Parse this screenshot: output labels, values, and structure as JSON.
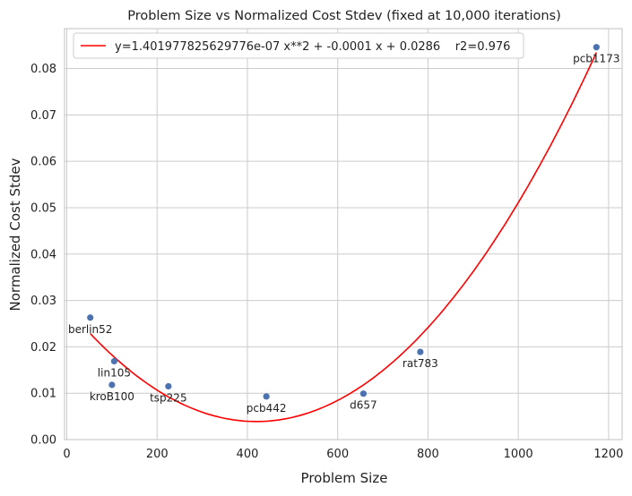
{
  "chart_data": {
    "type": "scatter",
    "title": "Problem Size vs Normalized Cost Stdev (fixed at 10,000 iterations)",
    "xlabel": "Problem Size",
    "ylabel": "Normalized Cost Stdev",
    "xlim": [
      -5,
      1230
    ],
    "ylim": [
      0,
      0.0886
    ],
    "xticks": [
      0,
      200,
      400,
      600,
      800,
      1000,
      1200
    ],
    "yticks": [
      0.0,
      0.01,
      0.02,
      0.03,
      0.04,
      0.05,
      0.06,
      0.07,
      0.08
    ],
    "xtick_labels": [
      "0",
      "200",
      "400",
      "600",
      "800",
      "1000",
      "1200"
    ],
    "ytick_labels": [
      "0.00",
      "0.01",
      "0.02",
      "0.03",
      "0.04",
      "0.05",
      "0.06",
      "0.07",
      "0.08"
    ],
    "grid": true,
    "legend_position": "top-left",
    "points": [
      {
        "label": "berlin52",
        "x": 52,
        "y": 0.0263
      },
      {
        "label": "kroB100",
        "x": 100,
        "y": 0.0118
      },
      {
        "label": "lin105",
        "x": 105,
        "y": 0.0169
      },
      {
        "label": "tsp225",
        "x": 225,
        "y": 0.0115
      },
      {
        "label": "pcb442",
        "x": 442,
        "y": 0.0093
      },
      {
        "label": "d657",
        "x": 657,
        "y": 0.0099
      },
      {
        "label": "rat783",
        "x": 783,
        "y": 0.0189
      },
      {
        "label": "pcb1173",
        "x": 1173,
        "y": 0.0846
      }
    ],
    "fit": {
      "legend_label": "y=1.401977825629776e-07 x**2 + -0.0001 x + 0.0286    r2=0.976",
      "a": 1.401977825629776e-07,
      "b": -0.0001177,
      "c": 0.0286,
      "x_range": [
        52,
        1173
      ]
    },
    "colors": {
      "points": "#4c72b0",
      "fit_line": "#ff0000",
      "grid": "#cccccc",
      "spine": "#cccccc"
    }
  }
}
